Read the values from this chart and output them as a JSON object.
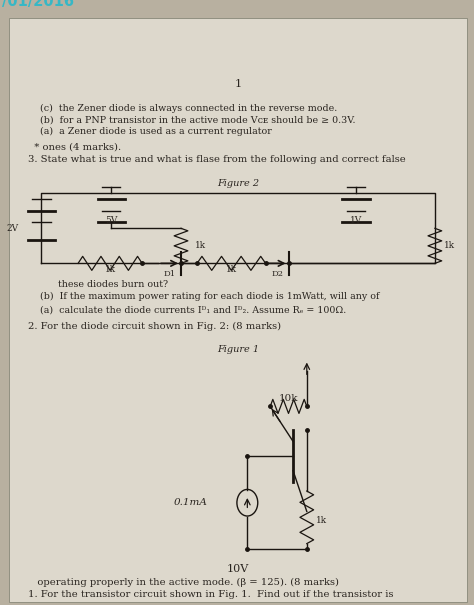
{
  "bg_color_outer": "#b8b0a0",
  "paper_color": "#ddd8cc",
  "text_color": "#2a2520",
  "line_color": "#1a1510",
  "watermark_text": "/01/2016",
  "watermark_color": "#30b8c8",
  "page_number": "1",
  "q1_line1": "1. For the transistor circuit shown in Fig. 1.  Find out if the transistor is",
  "q1_line2": "   operating properly in the active mode. (β = 125). (8 marks)",
  "q2_title": "2. For the diode circuit shown in Fig. 2: (8 marks)",
  "q2a": "    (a)  calculate the diode currents Iᴰ₁ and Iᴰ₂. Assume Rₑ = 100Ω.",
  "q2b_line1": "    (b)  If the maximum power rating for each diode is 1mWatt, will any of",
  "q2b_line2": "          these diodes burn out?",
  "q3_line1": "3. State what is true and what is flase from the following and correct false",
  "q3_line2": "  * ones (4 marks).",
  "q3a": "    (a)  a Zener diode is used as a current regulator",
  "q3b": "    (b)  for a PNP transistor in the active mode Vᴄᴇ should be ≥ 0.3V.",
  "q3c": "    (c)  the Zener diode is always connected in the reverse mode.",
  "fig1_label": "Figure 1",
  "fig2_label": "Figure 2",
  "fig1_10v": "10V",
  "fig1_1k": "1k",
  "fig1_01ma": "0.1mA",
  "fig1_10k": "10k",
  "font_size_main": 7.2,
  "font_size_small": 6.8,
  "font_size_circuit": 6.5
}
